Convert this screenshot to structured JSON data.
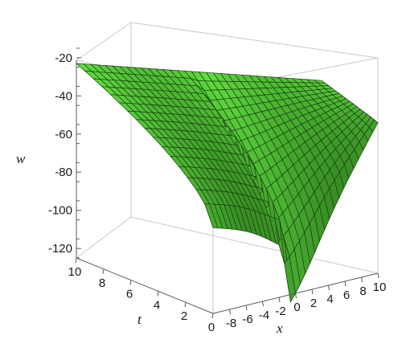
{
  "chart_data": {
    "type": "surface",
    "title": "",
    "zlabel": "w",
    "tlabel": "t",
    "xlabel": "x",
    "z_ticks": [
      "-20",
      "-40",
      "-60",
      "-80",
      "-100",
      "-120"
    ],
    "z_tick_values": [
      -20,
      -40,
      -60,
      -80,
      -100,
      -120
    ],
    "t_ticks": [
      "10",
      "8",
      "6",
      "4",
      "2",
      "0"
    ],
    "t_tick_values": [
      10,
      8,
      6,
      4,
      2,
      0
    ],
    "x_ticks": [
      "-8",
      "-6",
      "-4",
      "-2",
      "0",
      "2",
      "4",
      "6",
      "8",
      "10"
    ],
    "x_tick_values": [
      -8,
      -6,
      -4,
      -2,
      0,
      2,
      4,
      6,
      8,
      10
    ],
    "xlim": [
      -10,
      10
    ],
    "tlim": [
      0,
      10
    ],
    "zlim": [
      -125,
      -15
    ],
    "surface_color": "#5fbf3f",
    "mesh_color": "#1d3d12",
    "box_color": "#c9c9c9",
    "surface_samples": {
      "note_t_rows": [
        10,
        5,
        0
      ],
      "x": [
        -10,
        -5,
        0,
        5,
        10
      ],
      "w_at_t10": [
        -23,
        -26,
        -36,
        -40,
        -45
      ],
      "w_at_t0": [
        -80,
        -90,
        -123,
        -56,
        -46
      ]
    }
  }
}
